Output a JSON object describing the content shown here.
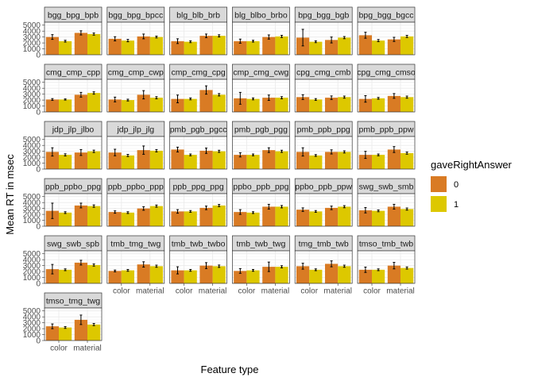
{
  "chart_data": {
    "type": "bar",
    "title": "",
    "xlabel": "Feature type",
    "ylabel": "Mean RT in msec",
    "categories": [
      "color",
      "material"
    ],
    "y_ticks": [
      0,
      1000,
      2000,
      3000,
      4000,
      5000
    ],
    "ylim": [
      0,
      5500
    ],
    "grid": true,
    "legend": {
      "title": "gaveRightAnswer",
      "placement": "right",
      "entries": [
        {
          "label": "0",
          "color": "#d97b24"
        },
        {
          "label": "1",
          "color": "#ddc800"
        }
      ]
    },
    "panels": [
      {
        "label": "bgg_bpg_bpb",
        "values": [
          [
            3000,
            400
          ],
          [
            2300,
            150
          ],
          [
            3700,
            350
          ],
          [
            3500,
            180
          ]
        ]
      },
      {
        "label": "bgg_bpg_bpcc",
        "values": [
          [
            2700,
            350
          ],
          [
            2400,
            200
          ],
          [
            3100,
            400
          ],
          [
            3000,
            150
          ]
        ]
      },
      {
        "label": "blg_blb_brb",
        "values": [
          [
            2300,
            400
          ],
          [
            2200,
            150
          ],
          [
            3200,
            300
          ],
          [
            3200,
            180
          ]
        ]
      },
      {
        "label": "blg_blbo_brbo",
        "values": [
          [
            2300,
            350
          ],
          [
            2300,
            150
          ],
          [
            3000,
            350
          ],
          [
            3100,
            180
          ]
        ]
      },
      {
        "label": "bpg_bgg_bgb",
        "values": [
          [
            2900,
            1400
          ],
          [
            2200,
            150
          ],
          [
            2500,
            500
          ],
          [
            2900,
            180
          ]
        ]
      },
      {
        "label": "bpg_bgg_bgcc",
        "values": [
          [
            3300,
            500
          ],
          [
            2400,
            180
          ],
          [
            2600,
            350
          ],
          [
            3100,
            180
          ]
        ]
      },
      {
        "label": "cmg_cmp_cpp",
        "values": [
          [
            2100,
            150
          ],
          [
            2100,
            100
          ],
          [
            2900,
            400
          ],
          [
            3200,
            200
          ]
        ]
      },
      {
        "label": "cmg_cmp_cwp",
        "values": [
          [
            2100,
            400
          ],
          [
            2000,
            150
          ],
          [
            2900,
            700
          ],
          [
            2400,
            180
          ]
        ]
      },
      {
        "label": "cmp_cmg_cpg",
        "values": [
          [
            2200,
            650
          ],
          [
            2200,
            150
          ],
          [
            3700,
            700
          ],
          [
            2900,
            200
          ]
        ]
      },
      {
        "label": "cmp_cmg_cwg",
        "values": [
          [
            2300,
            1000
          ],
          [
            2200,
            150
          ],
          [
            2400,
            450
          ],
          [
            2400,
            180
          ]
        ]
      },
      {
        "label": "cpg_cmg_cmb",
        "values": [
          [
            2500,
            400
          ],
          [
            2100,
            150
          ],
          [
            2400,
            300
          ],
          [
            2500,
            180
          ]
        ]
      },
      {
        "label": "cpg_cmg_cmso",
        "values": [
          [
            2200,
            550
          ],
          [
            2300,
            150
          ],
          [
            2700,
            400
          ],
          [
            2500,
            180
          ]
        ]
      },
      {
        "label": "jdp_jlp_jlbo",
        "values": [
          [
            2900,
            700
          ],
          [
            2400,
            180
          ],
          [
            2800,
            500
          ],
          [
            3000,
            200
          ]
        ]
      },
      {
        "label": "jdp_jlp_jlg",
        "values": [
          [
            2800,
            550
          ],
          [
            2300,
            180
          ],
          [
            3200,
            700
          ],
          [
            3100,
            200
          ]
        ]
      },
      {
        "label": "pmb_pgb_pgcc",
        "values": [
          [
            3300,
            400
          ],
          [
            2400,
            150
          ],
          [
            3100,
            450
          ],
          [
            3000,
            180
          ]
        ]
      },
      {
        "label": "pmb_pgb_pgg",
        "values": [
          [
            2400,
            350
          ],
          [
            2400,
            150
          ],
          [
            3200,
            400
          ],
          [
            3000,
            180
          ]
        ]
      },
      {
        "label": "pmb_ppb_ppg",
        "values": [
          [
            2900,
            700
          ],
          [
            2300,
            150
          ],
          [
            2900,
            350
          ],
          [
            2900,
            180
          ]
        ]
      },
      {
        "label": "pmb_ppb_ppw",
        "values": [
          [
            2400,
            600
          ],
          [
            2400,
            150
          ],
          [
            3300,
            500
          ],
          [
            2700,
            180
          ]
        ]
      },
      {
        "label": "ppb_ppbo_ppg",
        "values": [
          [
            2600,
            1300
          ],
          [
            2300,
            150
          ],
          [
            3500,
            400
          ],
          [
            3400,
            200
          ]
        ]
      },
      {
        "label": "ppb_ppbo_ppp",
        "values": [
          [
            2400,
            200
          ],
          [
            2300,
            150
          ],
          [
            3000,
            300
          ],
          [
            3400,
            180
          ]
        ]
      },
      {
        "label": "ppb_ppg_ppg",
        "values": [
          [
            2500,
            300
          ],
          [
            2500,
            150
          ],
          [
            3100,
            300
          ],
          [
            3500,
            180
          ]
        ]
      },
      {
        "label": "ppbo_ppb_ppg",
        "values": [
          [
            2400,
            400
          ],
          [
            2300,
            150
          ],
          [
            3300,
            400
          ],
          [
            3300,
            200
          ]
        ]
      },
      {
        "label": "ppbo_ppb_ppw",
        "values": [
          [
            2800,
            300
          ],
          [
            2500,
            150
          ],
          [
            3100,
            300
          ],
          [
            3300,
            180
          ]
        ]
      },
      {
        "label": "swg_swb_smb",
        "values": [
          [
            2700,
            450
          ],
          [
            2600,
            150
          ],
          [
            3300,
            400
          ],
          [
            2900,
            180
          ]
        ]
      },
      {
        "label": "swg_swb_spb",
        "values": [
          [
            2400,
            800
          ],
          [
            2300,
            150
          ],
          [
            3500,
            400
          ],
          [
            3100,
            180
          ]
        ]
      },
      {
        "label": "tmb_tmg_twg",
        "values": [
          [
            2100,
            150
          ],
          [
            2200,
            150
          ],
          [
            3200,
            450
          ],
          [
            2900,
            180
          ]
        ]
      },
      {
        "label": "tmb_twb_twbo",
        "values": [
          [
            2200,
            600
          ],
          [
            2200,
            150
          ],
          [
            3000,
            500
          ],
          [
            2900,
            200
          ]
        ]
      },
      {
        "label": "tmb_twb_twg",
        "values": [
          [
            2100,
            400
          ],
          [
            2200,
            150
          ],
          [
            2800,
            800
          ],
          [
            2800,
            180
          ]
        ]
      },
      {
        "label": "tmg_tmb_twb",
        "values": [
          [
            2900,
            500
          ],
          [
            2300,
            150
          ],
          [
            3300,
            500
          ],
          [
            2900,
            180
          ]
        ]
      },
      {
        "label": "tmso_tmb_twb",
        "values": [
          [
            2300,
            450
          ],
          [
            2300,
            150
          ],
          [
            3000,
            550
          ],
          [
            2600,
            180
          ]
        ]
      },
      {
        "label": "tmso_tmg_twg",
        "values": [
          [
            2400,
            400
          ],
          [
            2200,
            150
          ],
          [
            3500,
            800
          ],
          [
            2700,
            180
          ]
        ]
      }
    ]
  }
}
